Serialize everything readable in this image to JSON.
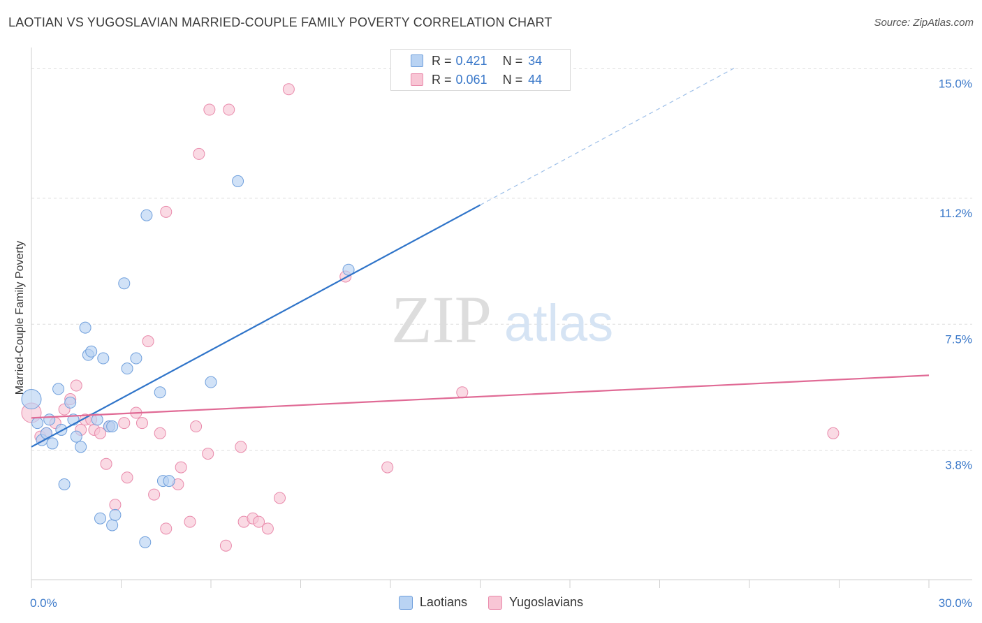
{
  "title": "LAOTIAN VS YUGOSLAVIAN MARRIED-COUPLE FAMILY POVERTY CORRELATION CHART",
  "source": "Source: ZipAtlas.com",
  "watermark": {
    "zip": "ZIP",
    "atlas": "atlas"
  },
  "legend": {
    "r_label": "R =",
    "n_label": "N =",
    "rows": [
      {
        "r": "0.421",
        "n": "34",
        "fill": "#b9d3f3",
        "stroke": "#6f9fdc"
      },
      {
        "r": "0.061",
        "n": "44",
        "fill": "#f8c6d5",
        "stroke": "#e98aab"
      }
    ]
  },
  "chart_data": {
    "type": "scatter",
    "title": "LAOTIAN VS YUGOSLAVIAN MARRIED-COUPLE FAMILY POVERTY CORRELATION CHART",
    "xlabel": "",
    "ylabel": "Married-Couple Family Poverty",
    "xlim": [
      0,
      30
    ],
    "ylim": [
      0,
      15.4
    ],
    "x_tick_labels": [
      "0.0%",
      "30.0%"
    ],
    "y_ticks": [
      3.8,
      7.5,
      11.2,
      15.0
    ],
    "y_tick_labels": [
      "3.8%",
      "7.5%",
      "11.2%",
      "15.0%"
    ],
    "grid": true,
    "series": [
      {
        "name": "Laotians",
        "color": "#b9d3f3",
        "stroke": "#6f9fdc",
        "line_color": "#2f74c9",
        "trend": {
          "x0": 0,
          "y0": 3.9,
          "x1": 15.0,
          "y1": 11.0,
          "dash_to_x": 23.5
        },
        "points": [
          [
            0.0,
            5.3
          ],
          [
            0.2,
            4.6
          ],
          [
            0.35,
            4.1
          ],
          [
            0.5,
            4.3
          ],
          [
            0.6,
            4.7
          ],
          [
            0.7,
            4.0
          ],
          [
            0.9,
            5.6
          ],
          [
            1.0,
            4.4
          ],
          [
            1.1,
            2.8
          ],
          [
            1.3,
            5.2
          ],
          [
            1.4,
            4.7
          ],
          [
            1.5,
            4.2
          ],
          [
            1.65,
            3.9
          ],
          [
            1.8,
            7.4
          ],
          [
            1.9,
            6.6
          ],
          [
            2.0,
            6.7
          ],
          [
            2.2,
            4.7
          ],
          [
            2.3,
            1.8
          ],
          [
            2.4,
            6.5
          ],
          [
            2.6,
            4.5
          ],
          [
            2.7,
            1.6
          ],
          [
            2.8,
            1.9
          ],
          [
            3.1,
            8.7
          ],
          [
            3.2,
            6.2
          ],
          [
            3.5,
            6.5
          ],
          [
            3.8,
            1.1
          ],
          [
            3.85,
            10.7
          ],
          [
            4.3,
            5.5
          ],
          [
            4.4,
            2.9
          ],
          [
            4.6,
            2.9
          ],
          [
            6.0,
            5.8
          ],
          [
            6.9,
            11.7
          ],
          [
            10.6,
            9.1
          ],
          [
            2.7,
            4.5
          ]
        ]
      },
      {
        "name": "Yugoslavians",
        "color": "#f8c6d5",
        "stroke": "#e98aab",
        "line_color": "#e06a95",
        "trend": {
          "x0": 0,
          "y0": 4.75,
          "x1": 30.0,
          "y1": 6.0
        },
        "points": [
          [
            0.0,
            4.9
          ],
          [
            0.3,
            4.2
          ],
          [
            0.5,
            4.3
          ],
          [
            0.8,
            4.6
          ],
          [
            1.1,
            5.0
          ],
          [
            1.3,
            5.3
          ],
          [
            1.5,
            5.7
          ],
          [
            1.65,
            4.4
          ],
          [
            1.8,
            4.7
          ],
          [
            2.0,
            4.7
          ],
          [
            2.1,
            4.4
          ],
          [
            2.3,
            4.3
          ],
          [
            2.5,
            3.4
          ],
          [
            2.8,
            2.2
          ],
          [
            3.1,
            4.6
          ],
          [
            3.2,
            3.0
          ],
          [
            3.5,
            4.9
          ],
          [
            3.7,
            4.6
          ],
          [
            3.9,
            7.0
          ],
          [
            4.1,
            2.5
          ],
          [
            4.3,
            4.3
          ],
          [
            4.5,
            1.5
          ],
          [
            4.5,
            10.8
          ],
          [
            4.9,
            2.8
          ],
          [
            5.0,
            3.3
          ],
          [
            5.3,
            1.7
          ],
          [
            5.5,
            4.5
          ],
          [
            5.6,
            12.5
          ],
          [
            5.9,
            3.7
          ],
          [
            5.95,
            13.8
          ],
          [
            6.5,
            1.0
          ],
          [
            6.6,
            13.8
          ],
          [
            7.0,
            3.9
          ],
          [
            7.1,
            1.7
          ],
          [
            7.4,
            1.8
          ],
          [
            7.6,
            1.7
          ],
          [
            7.9,
            1.5
          ],
          [
            8.3,
            2.4
          ],
          [
            8.6,
            14.4
          ],
          [
            10.5,
            8.9
          ],
          [
            11.9,
            3.3
          ],
          [
            14.4,
            5.5
          ],
          [
            26.8,
            4.3
          ],
          [
            2.6,
            4.5
          ]
        ]
      }
    ]
  }
}
